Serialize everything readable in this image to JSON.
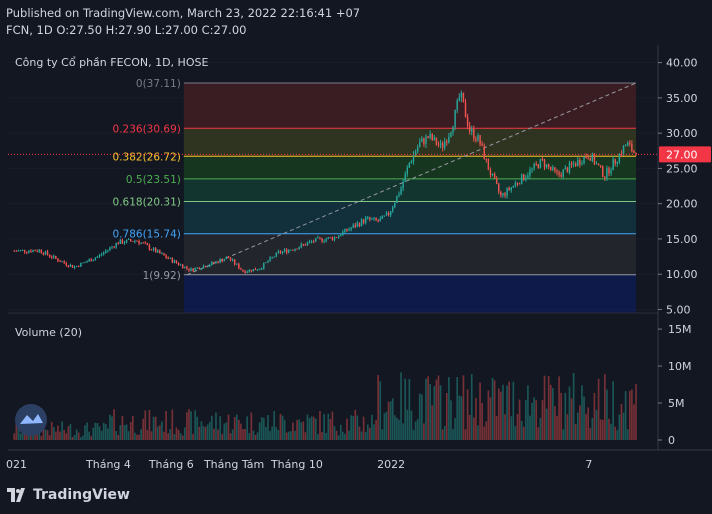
{
  "header": {
    "published": "Published on TradingView.com, March 23, 2022 22:16:41 +07",
    "ohlc": "FCN, 1D O:27.50 H:27.90 L:27.00 C:27.00"
  },
  "brand": {
    "text": "TradingView"
  },
  "colors": {
    "background": "#131722",
    "up": "#26a69a",
    "down": "#ef5350",
    "price_tag": "#f23645",
    "grid": "#2a2e39",
    "text": "#d1d4dc"
  },
  "chart_data": [
    {
      "type": "candlestick",
      "title": "Công ty Cổ phần FECON, 1D, HOSE",
      "price_axis": {
        "ticks": [
          "5.00",
          "10.00",
          "15.00",
          "20.00",
          "25.00",
          "30.00",
          "35.00",
          "40.00"
        ],
        "ylim": [
          4.5,
          42.5
        ],
        "last_price_label": "27.00",
        "last_price": 27.0
      },
      "time_axis": {
        "ticks": [
          "021",
          "Tháng 4",
          "Tháng 6",
          "Tháng Tám",
          "Tháng 10",
          "2022",
          "7"
        ],
        "tick_months": [
          0,
          3,
          5,
          7,
          9,
          12,
          18.3
        ],
        "xlim_months": [
          -0.2,
          20.5
        ]
      },
      "fib_retracement": {
        "levels": [
          {
            "label": "0(37.11)",
            "price": 37.11,
            "color": "#787b86"
          },
          {
            "label": "0.236(30.69)",
            "price": 30.69,
            "color": "#f23645"
          },
          {
            "label": "0.382(26.72)",
            "price": 26.72,
            "color": "#fbc02d"
          },
          {
            "label": "0.5(23.51)",
            "price": 23.51,
            "color": "#4caf50"
          },
          {
            "label": "0.618(20.31)",
            "price": 20.31,
            "color": "#81c784"
          },
          {
            "label": "0.786(15.74)",
            "price": 15.74,
            "color": "#42a5f5"
          },
          {
            "label": "1(9.92)",
            "price": 9.92,
            "color": "#9598a1"
          }
        ],
        "zone_colors": [
          "#3a1d22",
          "#2f3420",
          "#17361f",
          "#123530",
          "#11303b",
          "#23252c",
          "#0e1a4a"
        ],
        "start_month": 5.4,
        "end_month": 19.8,
        "trend_line": {
          "from": {
            "month": 5.5,
            "price": 9.92
          },
          "to": {
            "month": 19.8,
            "price": 37.11
          }
        }
      },
      "price_series": {
        "months": [
          0,
          0.8,
          1.4,
          1.9,
          2.7,
          3.3,
          3.9,
          4.4,
          5.0,
          5.6,
          6.3,
          6.8,
          7.3,
          7.8,
          8.4,
          9.0,
          9.6,
          10.2,
          10.7,
          11.2,
          11.6,
          11.9,
          12.3,
          12.6,
          12.9,
          13.2,
          13.6,
          13.85,
          14.0,
          14.2,
          14.5,
          14.8,
          15.1,
          15.5,
          16.0,
          16.4,
          16.8,
          17.3,
          17.8,
          18.3,
          18.8,
          19.2,
          19.5,
          19.8
        ],
        "close": [
          13.3,
          13.4,
          12.0,
          11.0,
          12.6,
          14.5,
          14.8,
          13.5,
          12.0,
          10.6,
          11.5,
          12.4,
          10.4,
          10.8,
          13.0,
          13.8,
          14.8,
          15.2,
          16.5,
          17.8,
          17.5,
          18.4,
          22.0,
          26.0,
          28.5,
          29.5,
          28.0,
          30.0,
          32.0,
          35.5,
          30.5,
          29.0,
          25.0,
          21.0,
          23.0,
          24.5,
          26.0,
          24.0,
          25.5,
          27.0,
          24.0,
          26.5,
          28.5,
          27.0
        ]
      },
      "volume_panel": {
        "title": "Volume (20)",
        "ticks": [
          "0",
          "5M",
          "10M",
          "15M"
        ],
        "ymax": 16.5
      }
    }
  ]
}
